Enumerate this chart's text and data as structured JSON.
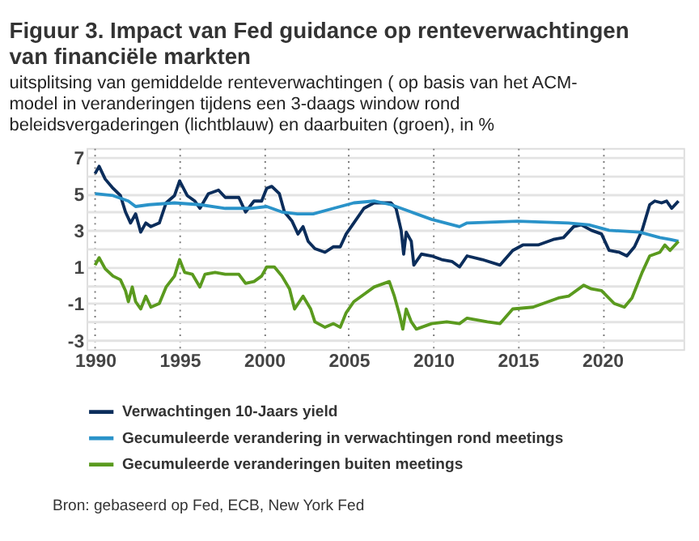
{
  "chart_data": {
    "type": "line",
    "title": "Figuur 3. Impact van Fed guidance op renteverwachtingen van financiële markten",
    "subtitle": "uitsplitsing van gemiddelde renteverwachtingen ( op basis van het ACM-model in veranderingen tijdens een 3-daags window rond beleidsvergaderingen (lichtblauw) en daarbuiten (groen), in %",
    "annotations": [
      "Bron: gebaseerd op Fed, ECB, New York Fed"
    ],
    "xlim": [
      1989.5,
      2024.8
    ],
    "xticks": [
      1990,
      1995,
      2000,
      2005,
      2010,
      2015,
      2020
    ],
    "ylim": [
      -3.5,
      7.5
    ],
    "yticks": [
      7,
      {
        "value": 6,
        "label": null
      },
      5,
      {
        "value": 4,
        "label": null
      },
      3,
      {
        "value": 2,
        "label": null
      },
      1,
      {
        "value": 0,
        "label": null
      },
      -1,
      {
        "value": -2,
        "label": null
      },
      -3
    ],
    "grid": true,
    "legend": "bottom",
    "series": [
      {
        "name": "Verwachtingen 10-Jaars yield",
        "color": "#0b2d5b",
        "x": [
          1990.0,
          1990.24,
          1990.6,
          1991.06,
          1991.5,
          1991.8,
          1992.1,
          1992.4,
          1992.7,
          1993.0,
          1993.3,
          1993.8,
          1994.2,
          1994.7,
          1995.0,
          1995.45,
          1995.9,
          1996.2,
          1996.7,
          1997.3,
          1997.7,
          1998.5,
          1998.9,
          1999.4,
          1999.85,
          2000.15,
          2000.45,
          2000.9,
          2001.2,
          2001.65,
          2002.0,
          2002.3,
          2002.6,
          2003.0,
          2003.6,
          2004.1,
          2004.5,
          2004.85,
          2005.3,
          2005.9,
          2006.5,
          2007.5,
          2007.8,
          2008.1,
          2008.25,
          2008.4,
          2008.7,
          2008.85,
          2009.3,
          2009.9,
          2010.5,
          2011.1,
          2011.55,
          2012.0,
          2012.9,
          2013.95,
          2014.7,
          2015.3,
          2016.2,
          2017.1,
          2017.7,
          2018.3,
          2018.75,
          2019.35,
          2019.95,
          2020.4,
          2021.0,
          2021.45,
          2021.9,
          2022.35,
          2022.8,
          2023.1,
          2023.5,
          2023.8,
          2024.1,
          2024.5
        ],
        "values": [
          6.1,
          6.5,
          5.8,
          5.3,
          4.9,
          4.0,
          3.4,
          3.9,
          2.9,
          3.4,
          3.2,
          3.4,
          4.5,
          4.9,
          5.7,
          4.9,
          4.6,
          4.2,
          5.0,
          5.2,
          4.8,
          4.8,
          4.0,
          4.6,
          4.6,
          5.3,
          5.4,
          5.0,
          4.0,
          3.5,
          2.8,
          3.2,
          2.4,
          2.0,
          1.8,
          2.1,
          2.1,
          2.8,
          3.4,
          4.2,
          4.5,
          4.5,
          4.2,
          3.0,
          1.7,
          2.9,
          2.4,
          1.1,
          1.7,
          1.6,
          1.4,
          1.3,
          1.0,
          1.6,
          1.4,
          1.1,
          1.9,
          2.2,
          2.2,
          2.5,
          2.6,
          3.2,
          3.3,
          3.0,
          2.8,
          1.9,
          1.8,
          1.6,
          2.1,
          3.0,
          4.4,
          4.6,
          4.5,
          4.6,
          4.2,
          4.6
        ]
      },
      {
        "name": "Gecumuleerde verandering in verwachtingen rond meetings",
        "color": "#2a93c9",
        "x": [
          1990.0,
          1991.06,
          1991.97,
          1992.4,
          1993.2,
          1994.7,
          1996.2,
          1997.7,
          1999.2,
          2000.15,
          2001.05,
          2001.97,
          2002.9,
          2004.1,
          2005.3,
          2006.5,
          2007.5,
          2008.7,
          2009.9,
          2011.55,
          2012.0,
          2015.0,
          2018.0,
          2019.2,
          2020.4,
          2022.2,
          2023.4,
          2024.0,
          2024.5
        ],
        "values": [
          5.0,
          4.9,
          4.6,
          4.3,
          4.4,
          4.5,
          4.4,
          4.2,
          4.2,
          4.3,
          4.0,
          3.9,
          3.9,
          4.2,
          4.5,
          4.6,
          4.4,
          4.0,
          3.6,
          3.2,
          3.4,
          3.5,
          3.4,
          3.3,
          3.0,
          2.9,
          2.6,
          2.5,
          2.4
        ]
      },
      {
        "name": "Gecumuleerde veranderingen buiten meetings",
        "color": "#5a9a1e",
        "x": [
          1990.0,
          1990.24,
          1990.6,
          1991.06,
          1991.5,
          1991.8,
          1991.97,
          1992.2,
          1992.4,
          1992.7,
          1993.0,
          1993.3,
          1993.8,
          1994.2,
          1994.7,
          1995.0,
          1995.3,
          1995.75,
          1996.2,
          1996.5,
          1997.1,
          1997.7,
          1998.5,
          1998.9,
          1999.4,
          1999.85,
          2000.15,
          2000.6,
          2001.05,
          2001.5,
          2001.8,
          2002.3,
          2002.75,
          2003.0,
          2003.6,
          2004.1,
          2004.5,
          2004.85,
          2005.3,
          2005.9,
          2006.5,
          2007.4,
          2007.7,
          2008.0,
          2008.2,
          2008.4,
          2008.7,
          2009.0,
          2009.9,
          2010.8,
          2011.55,
          2012.0,
          2013.2,
          2013.95,
          2014.7,
          2015.9,
          2017.4,
          2018.0,
          2018.9,
          2019.35,
          2019.95,
          2020.7,
          2021.3,
          2021.75,
          2022.35,
          2022.8,
          2023.4,
          2023.7,
          2024.0,
          2024.5
        ],
        "values": [
          1.1,
          1.5,
          0.9,
          0.5,
          0.3,
          -0.3,
          -0.9,
          -0.1,
          -0.9,
          -1.3,
          -0.6,
          -1.2,
          -1.0,
          -0.1,
          0.5,
          1.4,
          0.7,
          0.6,
          -0.1,
          0.6,
          0.7,
          0.6,
          0.6,
          0.1,
          0.2,
          0.5,
          1.0,
          1.0,
          0.5,
          -0.2,
          -1.3,
          -0.6,
          -1.3,
          -2.0,
          -2.3,
          -2.1,
          -2.3,
          -1.5,
          -0.9,
          -0.5,
          -0.1,
          0.2,
          -0.6,
          -1.6,
          -2.4,
          -1.3,
          -2.0,
          -2.4,
          -2.1,
          -2.0,
          -2.1,
          -1.8,
          -2.0,
          -2.1,
          -1.3,
          -1.2,
          -0.7,
          -0.6,
          0.0,
          -0.2,
          -0.3,
          -1.0,
          -1.2,
          -0.7,
          0.7,
          1.6,
          1.8,
          2.2,
          1.9,
          2.4
        ]
      }
    ]
  }
}
